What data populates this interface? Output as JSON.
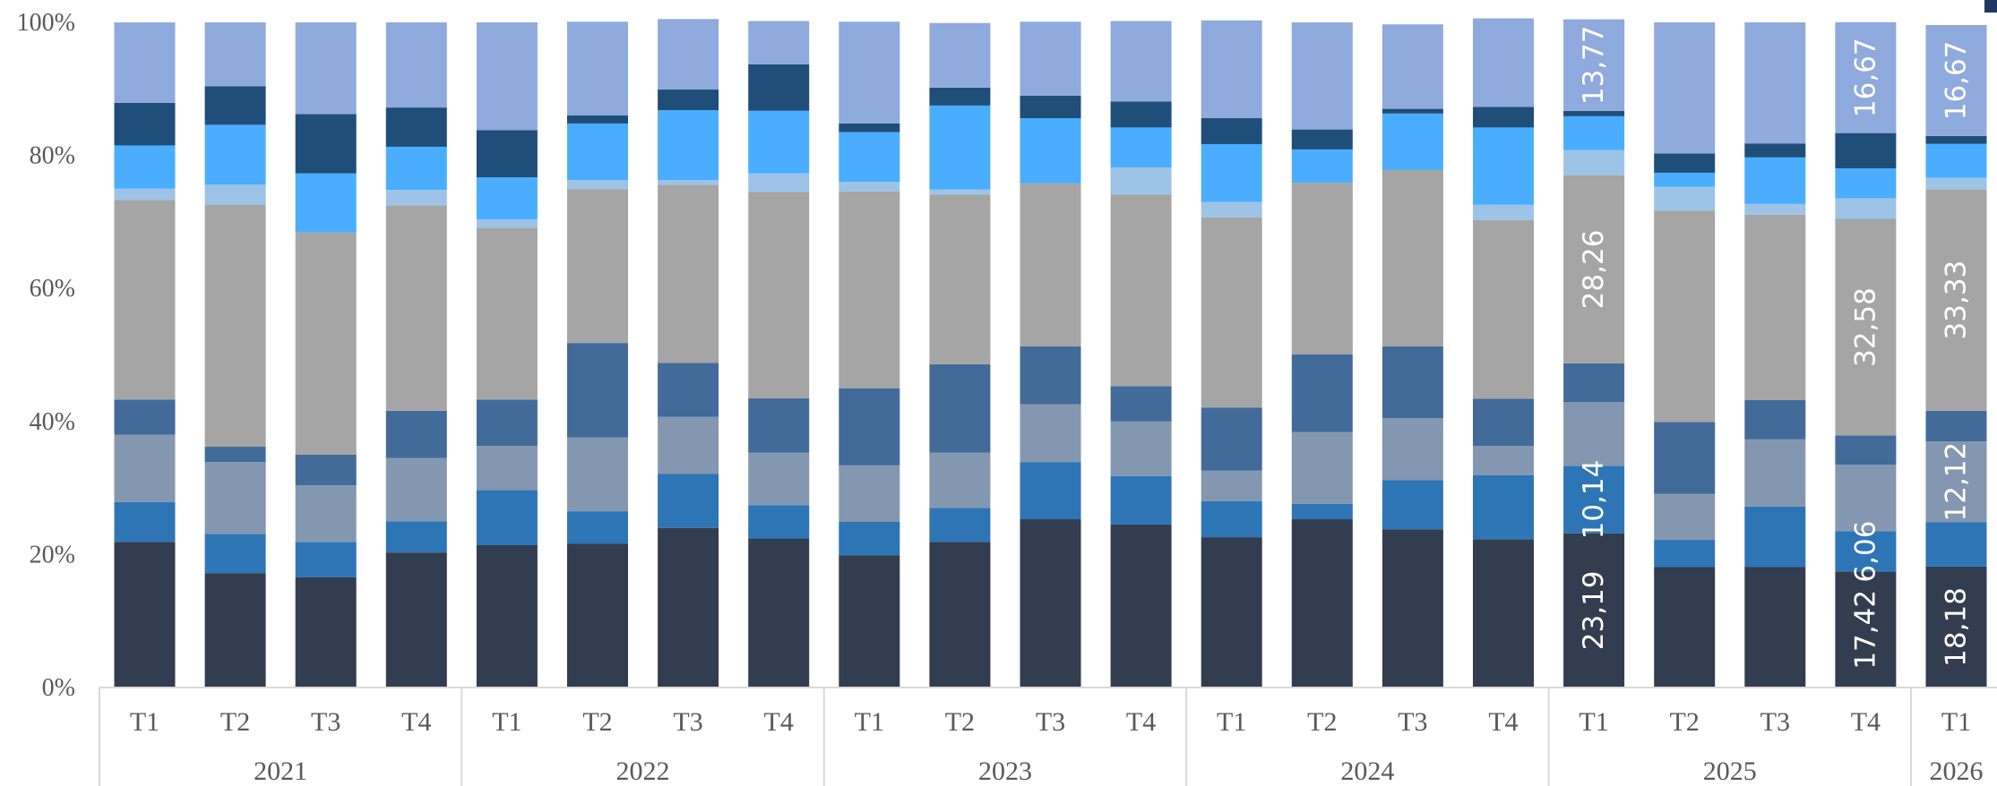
{
  "chart_data": {
    "type": "bar",
    "stacked": true,
    "percent": true,
    "title": "",
    "xlabel": "",
    "ylabel": "",
    "ylim": [
      0,
      100
    ],
    "y_ticks": [
      "0%",
      "20%",
      "40%",
      "60%",
      "80%",
      "100%"
    ],
    "grid": false,
    "legend": "none",
    "categories": [
      "T1",
      "T2",
      "T3",
      "T4",
      "T1",
      "T2",
      "T3",
      "T4",
      "T1",
      "T2",
      "T3",
      "T4",
      "T1",
      "T2",
      "T3",
      "T4",
      "T1",
      "T2",
      "T3",
      "T4",
      "T1"
    ],
    "year_groups": [
      {
        "label": "2021",
        "count": 4
      },
      {
        "label": "2022",
        "count": 4
      },
      {
        "label": "2023",
        "count": 4
      },
      {
        "label": "2024",
        "count": 4
      },
      {
        "label": "2025",
        "count": 4
      },
      {
        "label": "2026",
        "count": 1
      }
    ],
    "series": [
      {
        "color": "#323d4f",
        "values": [
          21.9,
          17.2,
          16.6,
          20.3,
          21.4,
          21.6,
          24.0,
          22.4,
          19.9,
          21.9,
          25.3,
          24.5,
          22.6,
          25.3,
          23.8,
          22.3,
          23.19,
          18.1,
          18.1,
          17.42,
          18.18
        ]
      },
      {
        "color": "#2e75b6",
        "values": [
          6.0,
          5.9,
          5.3,
          4.7,
          8.3,
          4.9,
          8.1,
          5.0,
          5.0,
          5.1,
          8.6,
          7.3,
          5.4,
          2.3,
          7.4,
          9.6,
          10.14,
          4.1,
          9.1,
          6.06,
          6.7
        ]
      },
      {
        "color": "#8497b0",
        "values": [
          10.1,
          10.8,
          8.5,
          9.5,
          6.6,
          11.1,
          8.6,
          7.9,
          8.5,
          8.3,
          8.7,
          8.2,
          4.6,
          10.8,
          9.3,
          4.4,
          9.6,
          6.9,
          10.1,
          10.0,
          12.12
        ]
      },
      {
        "color": "#436b99",
        "values": [
          5.3,
          2.3,
          4.6,
          7.1,
          7.0,
          14.2,
          8.1,
          8.2,
          11.6,
          13.3,
          8.7,
          5.3,
          9.5,
          11.7,
          10.8,
          7.1,
          5.8,
          10.8,
          5.9,
          4.4,
          4.6
        ]
      },
      {
        "color": "#a5a5a5",
        "values": [
          30.0,
          36.4,
          33.4,
          30.9,
          25.8,
          23.1,
          26.8,
          31.0,
          29.6,
          25.5,
          24.5,
          28.8,
          28.6,
          25.8,
          26.5,
          26.9,
          28.26,
          31.8,
          27.9,
          32.58,
          33.33
        ]
      },
      {
        "color": "#9dc3e6",
        "values": [
          1.7,
          3.0,
          0.0,
          2.3,
          1.3,
          1.4,
          0.7,
          2.8,
          1.4,
          0.8,
          0.0,
          4.1,
          2.3,
          0.0,
          0.0,
          2.3,
          3.8,
          3.6,
          1.6,
          3.1,
          1.7
        ]
      },
      {
        "color": "#4aadff",
        "values": [
          6.5,
          9.0,
          8.9,
          6.5,
          6.3,
          8.5,
          10.5,
          9.4,
          7.5,
          12.6,
          9.8,
          6.0,
          8.7,
          5.0,
          8.5,
          11.6,
          5.1,
          2.1,
          7.0,
          4.5,
          5.1
        ]
      },
      {
        "color": "#1f4e79",
        "values": [
          6.4,
          5.8,
          8.9,
          5.9,
          7.1,
          1.2,
          3.1,
          7.0,
          1.3,
          2.7,
          3.4,
          3.9,
          3.9,
          3.0,
          0.7,
          3.1,
          0.8,
          2.9,
          2.1,
          5.3,
          1.2
        ]
      },
      {
        "color": "#8faadc",
        "values": [
          12.1,
          9.6,
          13.8,
          12.8,
          16.2,
          14.1,
          10.6,
          6.5,
          15.3,
          9.7,
          11.1,
          12.1,
          14.7,
          16.1,
          12.7,
          13.3,
          13.77,
          19.7,
          18.2,
          16.67,
          16.67
        ]
      }
    ],
    "data_labels": [
      {
        "bar": 16,
        "series": 0,
        "text": "23,19"
      },
      {
        "bar": 16,
        "series": 1,
        "text": "10,14"
      },
      {
        "bar": 16,
        "series": 4,
        "text": "28,26"
      },
      {
        "bar": 16,
        "series": 8,
        "text": "13,77"
      },
      {
        "bar": 19,
        "series": 0,
        "text": "17,42"
      },
      {
        "bar": 19,
        "series": 1,
        "text": "6,06"
      },
      {
        "bar": 19,
        "series": 4,
        "text": "32,58"
      },
      {
        "bar": 19,
        "series": 8,
        "text": "16,67"
      },
      {
        "bar": 20,
        "series": 0,
        "text": "18,18"
      },
      {
        "bar": 20,
        "series": 2,
        "text": "12,12"
      },
      {
        "bar": 20,
        "series": 4,
        "text": "33,33"
      },
      {
        "bar": 20,
        "series": 8,
        "text": "16,67"
      }
    ]
  },
  "corner_mark_color": "#1f3864"
}
